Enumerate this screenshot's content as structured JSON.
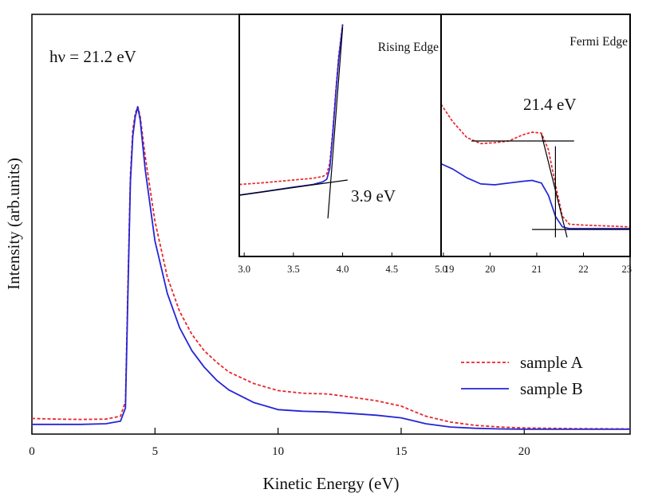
{
  "chart_data": [
    {
      "name": "main",
      "type": "line",
      "title": "",
      "xlabel": "Kinetic Energy (eV)",
      "ylabel": "Intensity (arb.units)",
      "xlim": [
        0,
        24.3
      ],
      "ylim": [
        0,
        1
      ],
      "xticks": [
        0,
        5,
        10,
        15,
        20
      ],
      "annotation": "hν = 21.2 eV",
      "legend_position": "bottom-right",
      "series": [
        {
          "name": "sample A",
          "style": "dashed",
          "color": "#e8262b",
          "x": [
            0,
            1,
            2,
            3,
            3.6,
            3.8,
            3.9,
            4.0,
            4.1,
            4.2,
            4.3,
            4.4,
            4.6,
            5.0,
            5.5,
            6.0,
            6.5,
            7.0,
            7.5,
            8.0,
            9.0,
            10.0,
            11.0,
            12.0,
            13.0,
            14.0,
            15.0,
            15.5,
            16.0,
            17.0,
            18.0,
            19.0,
            20.0,
            21.0,
            22.0,
            24.3
          ],
          "y": [
            0.038,
            0.036,
            0.035,
            0.036,
            0.045,
            0.09,
            0.45,
            0.78,
            0.92,
            0.97,
            0.99,
            0.96,
            0.84,
            0.64,
            0.47,
            0.365,
            0.295,
            0.245,
            0.21,
            0.18,
            0.145,
            0.123,
            0.115,
            0.113,
            0.103,
            0.092,
            0.076,
            0.06,
            0.045,
            0.027,
            0.017,
            0.012,
            0.009,
            0.008,
            0.007,
            0.006
          ]
        },
        {
          "name": "sample B",
          "style": "solid",
          "color": "#2424d8",
          "x": [
            0,
            1,
            2,
            3,
            3.6,
            3.8,
            3.9,
            4.0,
            4.1,
            4.2,
            4.3,
            4.4,
            4.6,
            5.0,
            5.5,
            6.0,
            6.5,
            7.0,
            7.5,
            8.0,
            9.0,
            10.0,
            11.0,
            12.0,
            13.0,
            14.0,
            15.0,
            15.5,
            16.0,
            17.0,
            18.0,
            19.0,
            20.0,
            21.0,
            22.0,
            24.3
          ],
          "y": [
            0.02,
            0.02,
            0.02,
            0.022,
            0.03,
            0.07,
            0.42,
            0.76,
            0.9,
            0.96,
            0.99,
            0.95,
            0.8,
            0.58,
            0.42,
            0.315,
            0.245,
            0.195,
            0.155,
            0.125,
            0.087,
            0.065,
            0.06,
            0.058,
            0.053,
            0.048,
            0.04,
            0.031,
            0.022,
            0.012,
            0.008,
            0.006,
            0.005,
            0.005,
            0.005,
            0.005
          ]
        }
      ]
    },
    {
      "name": "inset-rising-edge",
      "type": "line",
      "title": "Rising Edge",
      "xlabel": "",
      "ylabel": "",
      "xlim": [
        2.95,
        5.0
      ],
      "ylim": [
        0,
        1
      ],
      "xticks": [
        3.0,
        3.5,
        4.0,
        4.5,
        5.0
      ],
      "xtick_labels": [
        "3.0",
        "3.5",
        "4.0",
        "4.5",
        "5.0"
      ],
      "annotation": "3.9 eV",
      "series": [
        {
          "name": "sample A",
          "style": "dashed",
          "color": "#e8262b",
          "x": [
            2.95,
            3.2,
            3.5,
            3.7,
            3.8,
            3.84,
            3.87,
            3.9,
            3.93,
            3.96,
            4.0
          ],
          "y": [
            0.1,
            0.11,
            0.125,
            0.135,
            0.145,
            0.16,
            0.22,
            0.4,
            0.62,
            0.82,
            1.0
          ]
        },
        {
          "name": "sample B",
          "style": "solid",
          "color": "#2424d8",
          "x": [
            2.95,
            3.2,
            3.5,
            3.7,
            3.8,
            3.84,
            3.87,
            3.9,
            3.93,
            3.96,
            4.0
          ],
          "y": [
            0.04,
            0.06,
            0.085,
            0.1,
            0.115,
            0.13,
            0.19,
            0.38,
            0.6,
            0.8,
            0.995
          ]
        },
        {
          "name": "fit-baseline",
          "style": "solid",
          "color": "#000000",
          "x": [
            2.95,
            4.05
          ],
          "y": [
            0.04,
            0.125
          ]
        },
        {
          "name": "fit-edge",
          "style": "solid",
          "color": "#000000",
          "x": [
            3.85,
            4.0
          ],
          "y": [
            -0.09,
            0.98
          ]
        }
      ]
    },
    {
      "name": "inset-fermi-edge",
      "type": "line",
      "title": "Fermi Edge",
      "xlabel": "",
      "ylabel": "",
      "xlim": [
        18.95,
        23.0
      ],
      "ylim": [
        0,
        1
      ],
      "xticks": [
        19,
        20,
        21,
        22,
        23
      ],
      "xtick_labels": [
        "19",
        "20",
        "21",
        "22",
        "23"
      ],
      "annotation": "21.4 eV",
      "series": [
        {
          "name": "sample A",
          "style": "dashed",
          "color": "#e8262b",
          "x": [
            18.95,
            19.2,
            19.5,
            19.8,
            20.1,
            20.4,
            20.7,
            20.9,
            21.1,
            21.25,
            21.4,
            21.55,
            21.7,
            22.0,
            22.5,
            23.0
          ],
          "y": [
            0.76,
            0.66,
            0.57,
            0.535,
            0.54,
            0.55,
            0.585,
            0.6,
            0.595,
            0.5,
            0.3,
            0.12,
            0.075,
            0.07,
            0.065,
            0.06
          ]
        },
        {
          "name": "sample B",
          "style": "solid",
          "color": "#2424d8",
          "x": [
            18.95,
            19.2,
            19.5,
            19.8,
            20.1,
            20.4,
            20.7,
            20.9,
            21.1,
            21.25,
            21.4,
            21.55,
            21.7,
            22.0,
            22.5,
            23.0
          ],
          "y": [
            0.42,
            0.39,
            0.34,
            0.305,
            0.3,
            0.31,
            0.32,
            0.325,
            0.31,
            0.24,
            0.12,
            0.06,
            0.05,
            0.05,
            0.05,
            0.05
          ]
        },
        {
          "name": "fit-top",
          "style": "solid",
          "color": "#000000",
          "x": [
            19.6,
            21.8
          ],
          "y": [
            0.55,
            0.55
          ]
        },
        {
          "name": "fit-bottom",
          "style": "solid",
          "color": "#000000",
          "x": [
            20.9,
            23.0
          ],
          "y": [
            0.045,
            0.045
          ]
        },
        {
          "name": "fit-edge",
          "style": "solid",
          "color": "#000000",
          "x": [
            21.1,
            21.65
          ],
          "y": [
            0.59,
            0.0
          ]
        },
        {
          "name": "fermi-marker",
          "style": "solid",
          "color": "#000000",
          "x": [
            21.4,
            21.4
          ],
          "y": [
            0.52,
            0.0
          ]
        }
      ]
    }
  ]
}
